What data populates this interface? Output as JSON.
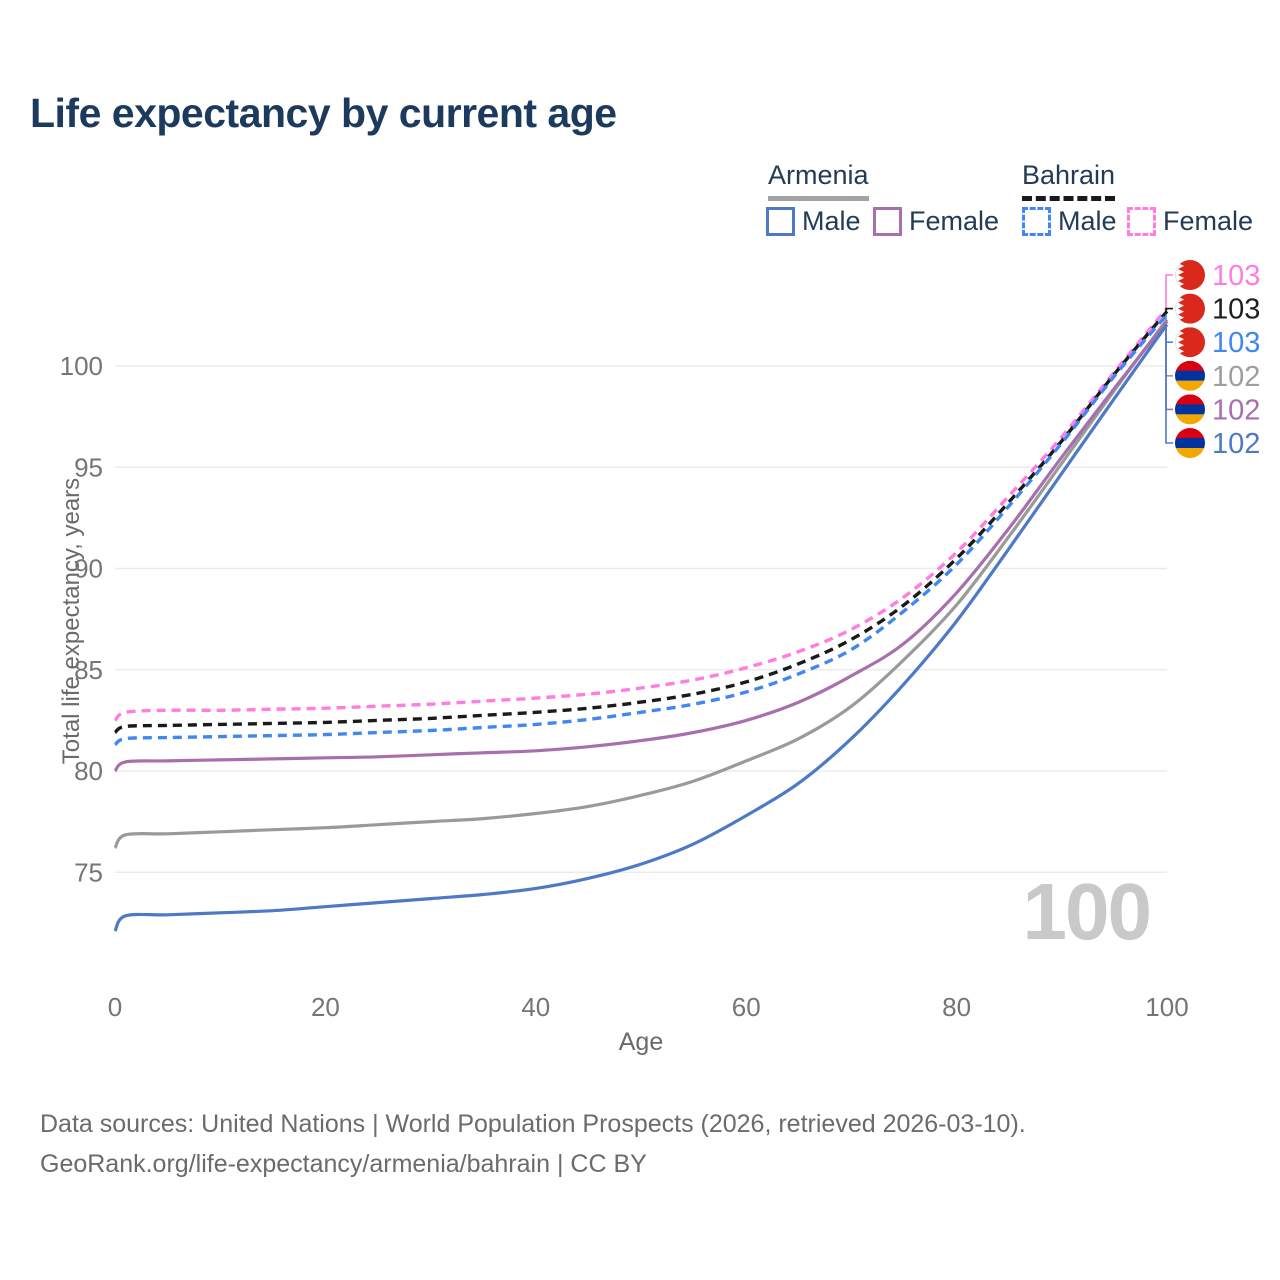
{
  "title": {
    "text": "Life expectancy by current age",
    "color": "#1c3a5e"
  },
  "legend": {
    "groups": [
      {
        "name": "Armenia",
        "line_style": "solid",
        "underline_color": "#a3a3a3",
        "items": [
          {
            "label": "Male",
            "color": "#4e79c4",
            "dashed": false
          },
          {
            "label": "Female",
            "color": "#a86fae",
            "dashed": false
          }
        ]
      },
      {
        "name": "Bahrain",
        "line_style": "dashed",
        "underline_color": "#1a1a1a",
        "items": [
          {
            "label": "Male",
            "color": "#4187f2",
            "dashed": true
          },
          {
            "label": "Female",
            "color": "#ff7ce0",
            "dashed": true
          }
        ]
      }
    ]
  },
  "watermark": "100",
  "footer": {
    "line1": "Data sources: United Nations | World Population Prospects (2026, retrieved 2026-03-10).",
    "line2": "GeoRank.org/life-expectancy/armenia/bahrain | CC BY"
  },
  "chart_data": {
    "type": "line",
    "title": "Life expectancy by current age",
    "xlabel": "Age",
    "ylabel": "Total life expectancy, years",
    "xlim": [
      0,
      100
    ],
    "ylim": [
      69.5,
      104
    ],
    "x_ticks": [
      0,
      20,
      40,
      60,
      80,
      100
    ],
    "y_ticks": [
      75,
      80,
      85,
      90,
      95,
      100
    ],
    "grid": "horizontal",
    "grid_color": "#ebebeb",
    "tick_color": "#757575",
    "legend_position": "top-right",
    "ages": [
      0,
      1,
      5,
      10,
      15,
      20,
      25,
      30,
      35,
      40,
      45,
      50,
      55,
      60,
      65,
      70,
      75,
      80,
      85,
      90,
      95,
      100
    ],
    "series": [
      {
        "id": "bahrain-female",
        "name": "Bahrain Female",
        "country": "bahrain",
        "sex": "female",
        "color": "#ff7ce0",
        "label_color": "#ff7ce0",
        "dashed": true,
        "end_label": "103",
        "values": [
          82.5,
          82.9,
          83.0,
          83.0,
          83.05,
          83.1,
          83.2,
          83.3,
          83.45,
          83.6,
          83.8,
          84.1,
          84.5,
          85.1,
          85.9,
          87.0,
          88.6,
          90.8,
          93.6,
          96.5,
          99.7,
          102.85
        ]
      },
      {
        "id": "bahrain-total",
        "name": "Bahrain",
        "country": "bahrain",
        "sex": "total",
        "color": "#1a1a1a",
        "label_color": "#1f1f1f",
        "dashed": true,
        "end_label": "103",
        "values": [
          81.9,
          82.2,
          82.25,
          82.3,
          82.35,
          82.4,
          82.5,
          82.6,
          82.75,
          82.9,
          83.1,
          83.4,
          83.8,
          84.4,
          85.3,
          86.5,
          88.2,
          90.5,
          93.3,
          96.3,
          99.6,
          102.7
        ]
      },
      {
        "id": "bahrain-male",
        "name": "Bahrain Male",
        "country": "bahrain",
        "sex": "male",
        "color": "#4187f2",
        "label_color": "#4187f2",
        "dashed": true,
        "end_label": "103",
        "values": [
          81.3,
          81.6,
          81.65,
          81.7,
          81.75,
          81.8,
          81.9,
          82.0,
          82.15,
          82.3,
          82.55,
          82.9,
          83.3,
          83.9,
          84.8,
          86.0,
          87.9,
          90.2,
          93.1,
          96.2,
          99.5,
          102.55
        ]
      },
      {
        "id": "armenia-total",
        "name": "Armenia",
        "country": "armenia",
        "sex": "total",
        "color": "#9a9a9a",
        "label_color": "#9e9e9e",
        "dashed": false,
        "end_label": "102",
        "values": [
          76.2,
          76.85,
          76.9,
          77.0,
          77.1,
          77.2,
          77.35,
          77.5,
          77.65,
          77.9,
          78.25,
          78.8,
          79.5,
          80.5,
          81.6,
          83.2,
          85.5,
          88.2,
          91.6,
          95.2,
          98.8,
          102.3
        ]
      },
      {
        "id": "armenia-female",
        "name": "Armenia Female",
        "country": "armenia",
        "sex": "female",
        "color": "#a86fae",
        "label_color": "#a86fae",
        "dashed": false,
        "end_label": "102",
        "values": [
          80.0,
          80.45,
          80.5,
          80.55,
          80.6,
          80.65,
          80.7,
          80.8,
          80.9,
          81.0,
          81.2,
          81.5,
          81.9,
          82.5,
          83.4,
          84.7,
          86.3,
          88.8,
          92.0,
          95.5,
          98.9,
          102.2
        ]
      },
      {
        "id": "armenia-male",
        "name": "Armenia Male",
        "country": "armenia",
        "sex": "male",
        "color": "#4e79c4",
        "label_color": "#4e79c4",
        "dashed": false,
        "end_label": "102",
        "values": [
          72.1,
          72.85,
          72.9,
          73.0,
          73.1,
          73.3,
          73.5,
          73.7,
          73.9,
          74.2,
          74.7,
          75.4,
          76.4,
          77.8,
          79.4,
          81.6,
          84.3,
          87.4,
          91.0,
          94.7,
          98.4,
          102.05
        ]
      }
    ],
    "flag_colors": {
      "bahrain_red": "#da291c",
      "bahrain_white": "#ffffff",
      "armenia_red": "#d90012",
      "armenia_blue": "#0033a0",
      "armenia_orange": "#f2a800"
    }
  }
}
